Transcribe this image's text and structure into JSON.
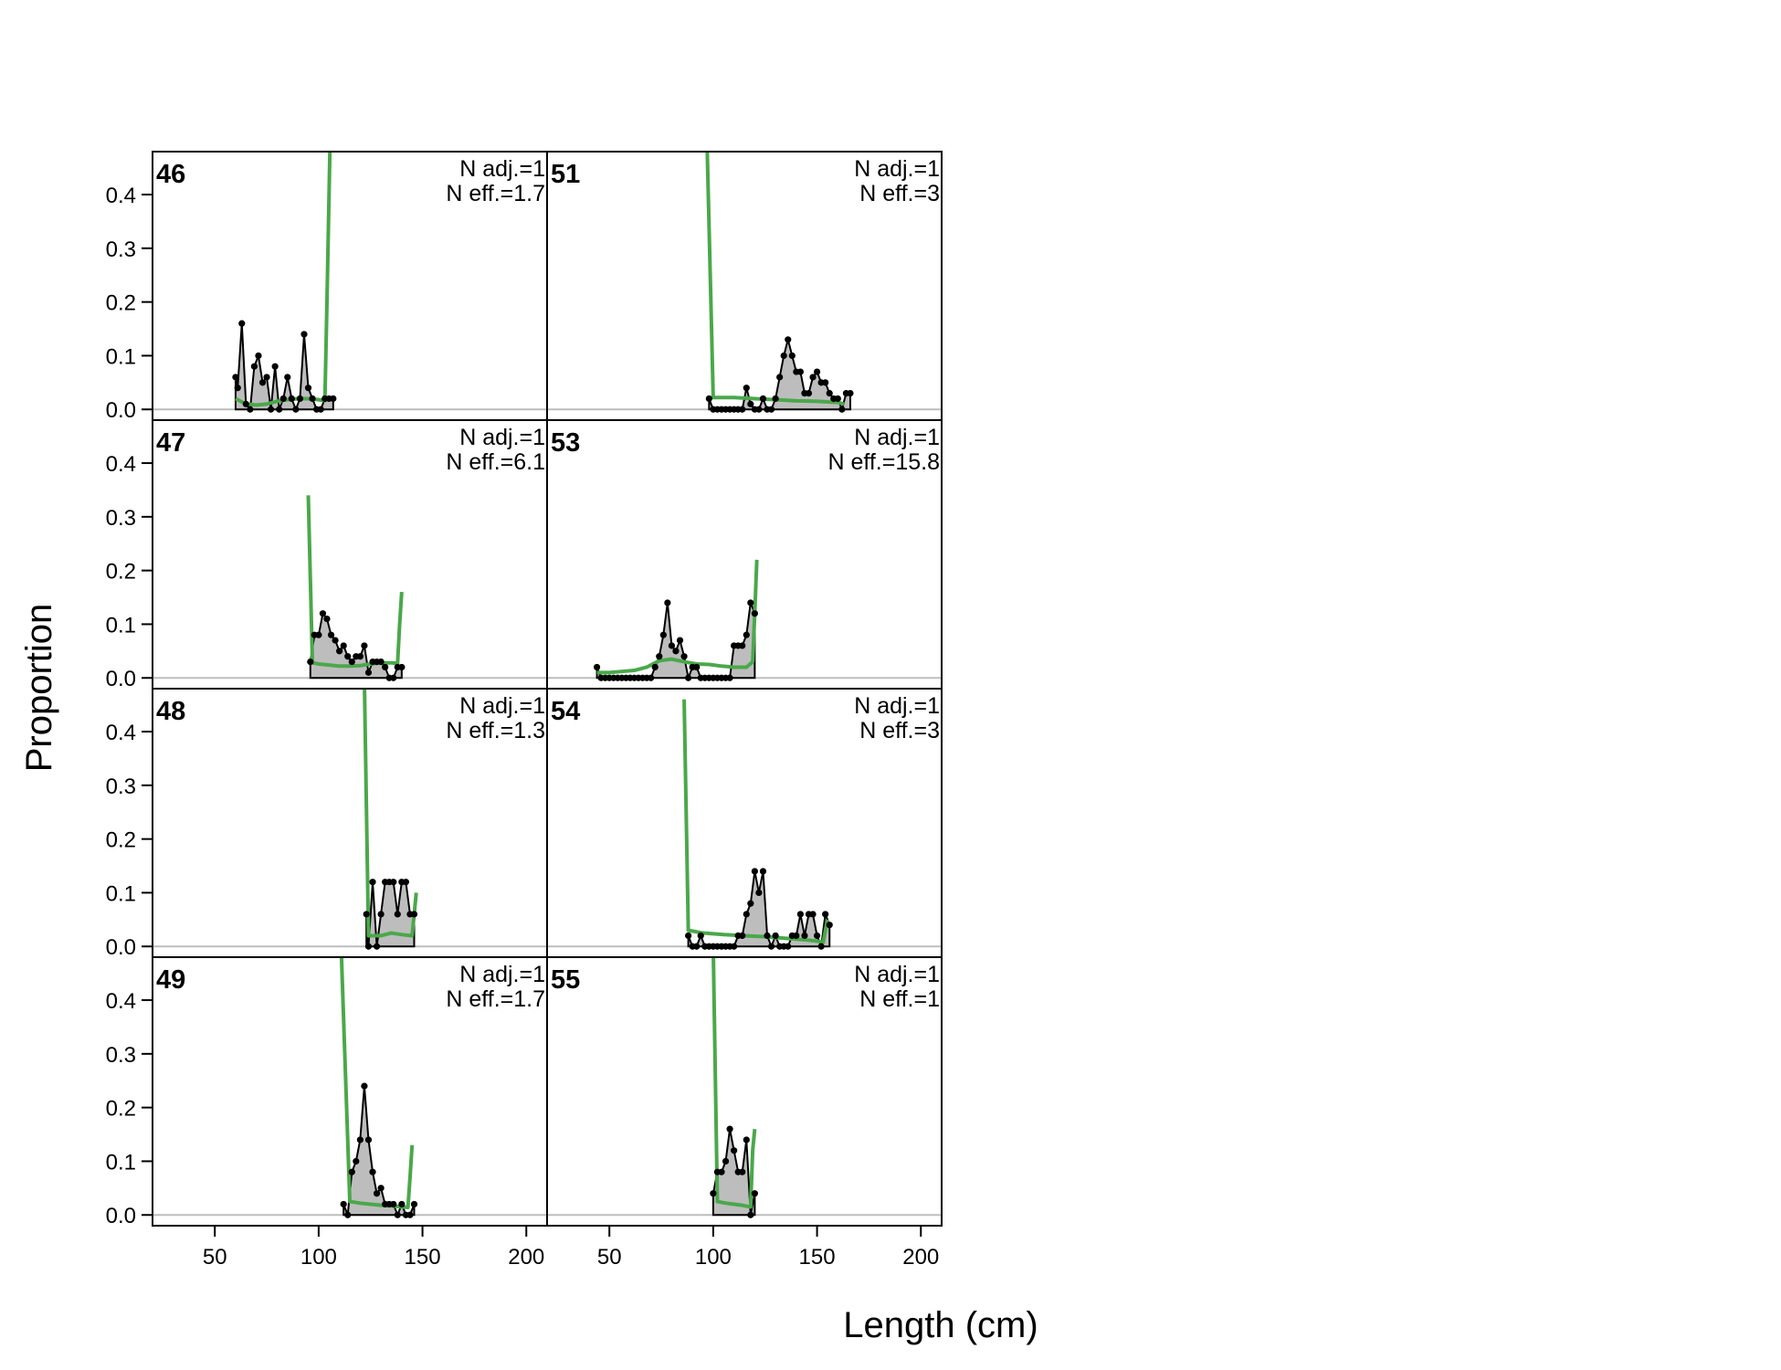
{
  "chart_data": {
    "type": "line",
    "xlabel": "Length (cm)",
    "ylabel": "Proportion",
    "xlim": [
      20,
      210
    ],
    "ylim": [
      -0.02,
      0.48
    ],
    "x_ticks": [
      "50",
      "100",
      "150",
      "200"
    ],
    "y_ticks": [
      "0.0",
      "0.1",
      "0.2",
      "0.3",
      "0.4"
    ],
    "colors": {
      "observed_fill": "#bdbdbd",
      "observed_line": "#000000",
      "expected_line": "#4aa84a",
      "zero_line": "#bdbdbd"
    },
    "panels": [
      {
        "id": "46",
        "n_adj": "N adj.=1",
        "n_eff": "N eff.=1.7",
        "observed": [
          [
            60,
            0.06
          ],
          [
            61,
            0.04
          ],
          [
            63,
            0.16
          ],
          [
            65,
            0.01
          ],
          [
            67,
            0.0
          ],
          [
            69,
            0.08
          ],
          [
            71,
            0.1
          ],
          [
            73,
            0.05
          ],
          [
            75,
            0.06
          ],
          [
            77,
            0.0
          ],
          [
            79,
            0.08
          ],
          [
            81,
            0.0
          ],
          [
            83,
            0.02
          ],
          [
            85,
            0.06
          ],
          [
            87,
            0.02
          ],
          [
            89,
            0.0
          ],
          [
            91,
            0.02
          ],
          [
            93,
            0.14
          ],
          [
            95,
            0.04
          ],
          [
            97,
            0.02
          ],
          [
            99,
            0.0
          ],
          [
            101,
            0.0
          ],
          [
            103,
            0.02
          ],
          [
            105,
            0.02
          ],
          [
            107,
            0.02
          ]
        ],
        "expected": [
          [
            60,
            0.02
          ],
          [
            65,
            0.01
          ],
          [
            70,
            0.008
          ],
          [
            75,
            0.01
          ],
          [
            80,
            0.015
          ],
          [
            85,
            0.018
          ],
          [
            90,
            0.02
          ],
          [
            95,
            0.02
          ],
          [
            100,
            0.018
          ],
          [
            103,
            0.016
          ],
          [
            104,
            0.2
          ],
          [
            105,
            0.4
          ],
          [
            106,
            0.6
          ]
        ]
      },
      {
        "id": "51",
        "n_adj": "N adj.=1",
        "n_eff": "N eff.=3",
        "observed": [
          [
            98,
            0.02
          ],
          [
            100,
            0.0
          ],
          [
            102,
            0.0
          ],
          [
            104,
            0.0
          ],
          [
            106,
            0.0
          ],
          [
            108,
            0.0
          ],
          [
            110,
            0.0
          ],
          [
            112,
            0.0
          ],
          [
            114,
            0.0
          ],
          [
            116,
            0.04
          ],
          [
            118,
            0.01
          ],
          [
            120,
            0.0
          ],
          [
            122,
            0.0
          ],
          [
            124,
            0.02
          ],
          [
            126,
            0.0
          ],
          [
            128,
            0.0
          ],
          [
            130,
            0.02
          ],
          [
            132,
            0.06
          ],
          [
            134,
            0.1
          ],
          [
            136,
            0.13
          ],
          [
            138,
            0.1
          ],
          [
            140,
            0.07
          ],
          [
            142,
            0.07
          ],
          [
            144,
            0.03
          ],
          [
            146,
            0.03
          ],
          [
            148,
            0.06
          ],
          [
            150,
            0.07
          ],
          [
            152,
            0.05
          ],
          [
            154,
            0.05
          ],
          [
            156,
            0.03
          ],
          [
            158,
            0.02
          ],
          [
            160,
            0.02
          ],
          [
            162,
            0.0
          ],
          [
            164,
            0.03
          ],
          [
            166,
            0.03
          ]
        ],
        "expected": [
          [
            97,
            0.5
          ],
          [
            100,
            0.022
          ],
          [
            110,
            0.022
          ],
          [
            120,
            0.02
          ],
          [
            130,
            0.018
          ],
          [
            140,
            0.016
          ],
          [
            150,
            0.015
          ],
          [
            160,
            0.013
          ],
          [
            163,
            0.01
          ]
        ]
      },
      {
        "id": "47",
        "n_adj": "N adj.=1",
        "n_eff": "N eff.=6.1",
        "observed": [
          [
            96,
            0.03
          ],
          [
            98,
            0.08
          ],
          [
            100,
            0.08
          ],
          [
            102,
            0.12
          ],
          [
            104,
            0.11
          ],
          [
            106,
            0.08
          ],
          [
            108,
            0.07
          ],
          [
            110,
            0.05
          ],
          [
            112,
            0.06
          ],
          [
            114,
            0.04
          ],
          [
            116,
            0.03
          ],
          [
            118,
            0.04
          ],
          [
            120,
            0.04
          ],
          [
            122,
            0.06
          ],
          [
            124,
            0.01
          ],
          [
            126,
            0.03
          ],
          [
            128,
            0.03
          ],
          [
            130,
            0.03
          ],
          [
            132,
            0.02
          ],
          [
            134,
            0.0
          ],
          [
            136,
            0.0
          ],
          [
            138,
            0.02
          ],
          [
            140,
            0.02
          ]
        ],
        "expected": [
          [
            95,
            0.34
          ],
          [
            97,
            0.028
          ],
          [
            100,
            0.026
          ],
          [
            105,
            0.024
          ],
          [
            110,
            0.022
          ],
          [
            115,
            0.022
          ],
          [
            120,
            0.023
          ],
          [
            125,
            0.026
          ],
          [
            130,
            0.028
          ],
          [
            135,
            0.028
          ],
          [
            138,
            0.027
          ],
          [
            139,
            0.1
          ],
          [
            140,
            0.16
          ]
        ]
      },
      {
        "id": "53",
        "n_adj": "N adj.=1",
        "n_eff": "N eff.=15.8",
        "observed": [
          [
            44,
            0.02
          ],
          [
            46,
            0.0
          ],
          [
            48,
            0.0
          ],
          [
            50,
            0.0
          ],
          [
            52,
            0.0
          ],
          [
            54,
            0.0
          ],
          [
            56,
            0.0
          ],
          [
            58,
            0.0
          ],
          [
            60,
            0.0
          ],
          [
            62,
            0.0
          ],
          [
            64,
            0.0
          ],
          [
            66,
            0.0
          ],
          [
            68,
            0.0
          ],
          [
            70,
            0.0
          ],
          [
            72,
            0.02
          ],
          [
            74,
            0.04
          ],
          [
            76,
            0.08
          ],
          [
            78,
            0.14
          ],
          [
            80,
            0.06
          ],
          [
            82,
            0.05
          ],
          [
            84,
            0.07
          ],
          [
            86,
            0.04
          ],
          [
            88,
            0.0
          ],
          [
            90,
            0.02
          ],
          [
            92,
            0.02
          ],
          [
            94,
            0.0
          ],
          [
            96,
            0.0
          ],
          [
            98,
            0.0
          ],
          [
            100,
            0.0
          ],
          [
            102,
            0.0
          ],
          [
            104,
            0.0
          ],
          [
            106,
            0.0
          ],
          [
            108,
            0.0
          ],
          [
            110,
            0.06
          ],
          [
            112,
            0.06
          ],
          [
            114,
            0.06
          ],
          [
            116,
            0.08
          ],
          [
            118,
            0.14
          ],
          [
            120,
            0.12
          ]
        ],
        "expected": [
          [
            44,
            0.01
          ],
          [
            50,
            0.01
          ],
          [
            56,
            0.012
          ],
          [
            62,
            0.014
          ],
          [
            68,
            0.02
          ],
          [
            74,
            0.032
          ],
          [
            80,
            0.035
          ],
          [
            86,
            0.03
          ],
          [
            92,
            0.026
          ],
          [
            98,
            0.025
          ],
          [
            104,
            0.022
          ],
          [
            110,
            0.02
          ],
          [
            116,
            0.02
          ],
          [
            119,
            0.03
          ],
          [
            120,
            0.12
          ],
          [
            121,
            0.22
          ]
        ]
      },
      {
        "id": "48",
        "n_adj": "N adj.=1",
        "n_eff": "N eff.=1.3",
        "observed": [
          [
            123,
            0.06
          ],
          [
            124,
            0.0
          ],
          [
            126,
            0.12
          ],
          [
            128,
            0.0
          ],
          [
            130,
            0.06
          ],
          [
            132,
            0.12
          ],
          [
            134,
            0.12
          ],
          [
            136,
            0.12
          ],
          [
            138,
            0.06
          ],
          [
            140,
            0.12
          ],
          [
            142,
            0.12
          ],
          [
            144,
            0.06
          ],
          [
            146,
            0.06
          ]
        ],
        "expected": [
          [
            122,
            0.5
          ],
          [
            124,
            0.02
          ],
          [
            130,
            0.02
          ],
          [
            135,
            0.025
          ],
          [
            140,
            0.022
          ],
          [
            145,
            0.02
          ],
          [
            146,
            0.06
          ],
          [
            147,
            0.1
          ]
        ]
      },
      {
        "id": "54",
        "n_adj": "N adj.=1",
        "n_eff": "N eff.=3",
        "observed": [
          [
            88,
            0.02
          ],
          [
            90,
            0.0
          ],
          [
            92,
            0.0
          ],
          [
            94,
            0.02
          ],
          [
            96,
            0.0
          ],
          [
            98,
            0.0
          ],
          [
            100,
            0.0
          ],
          [
            102,
            0.0
          ],
          [
            104,
            0.0
          ],
          [
            106,
            0.0
          ],
          [
            108,
            0.0
          ],
          [
            110,
            0.0
          ],
          [
            112,
            0.02
          ],
          [
            114,
            0.02
          ],
          [
            116,
            0.06
          ],
          [
            118,
            0.08
          ],
          [
            120,
            0.14
          ],
          [
            122,
            0.1
          ],
          [
            124,
            0.14
          ],
          [
            126,
            0.02
          ],
          [
            128,
            0.0
          ],
          [
            130,
            0.02
          ],
          [
            132,
            0.0
          ],
          [
            134,
            0.0
          ],
          [
            136,
            0.0
          ],
          [
            138,
            0.02
          ],
          [
            140,
            0.02
          ],
          [
            142,
            0.06
          ],
          [
            144,
            0.02
          ],
          [
            146,
            0.06
          ],
          [
            148,
            0.06
          ],
          [
            150,
            0.02
          ],
          [
            152,
            0.0
          ],
          [
            154,
            0.06
          ],
          [
            156,
            0.04
          ]
        ],
        "expected": [
          [
            86,
            0.46
          ],
          [
            88,
            0.03
          ],
          [
            95,
            0.025
          ],
          [
            105,
            0.022
          ],
          [
            115,
            0.02
          ],
          [
            125,
            0.018
          ],
          [
            135,
            0.015
          ],
          [
            145,
            0.012
          ],
          [
            150,
            0.01
          ],
          [
            153,
            0.008
          ],
          [
            155,
            0.05
          ]
        ]
      },
      {
        "id": "49",
        "n_adj": "N adj.=1",
        "n_eff": "N eff.=1.7",
        "observed": [
          [
            112,
            0.02
          ],
          [
            114,
            0.0
          ],
          [
            116,
            0.08
          ],
          [
            118,
            0.1
          ],
          [
            120,
            0.14
          ],
          [
            122,
            0.24
          ],
          [
            124,
            0.14
          ],
          [
            126,
            0.08
          ],
          [
            128,
            0.04
          ],
          [
            130,
            0.05
          ],
          [
            132,
            0.02
          ],
          [
            134,
            0.02
          ],
          [
            136,
            0.02
          ],
          [
            138,
            0.0
          ],
          [
            140,
            0.02
          ],
          [
            142,
            0.0
          ],
          [
            144,
            0.0
          ],
          [
            146,
            0.02
          ]
        ],
        "expected": [
          [
            111,
            0.48
          ],
          [
            115,
            0.025
          ],
          [
            120,
            0.022
          ],
          [
            125,
            0.02
          ],
          [
            130,
            0.018
          ],
          [
            135,
            0.017
          ],
          [
            140,
            0.015
          ],
          [
            143,
            0.014
          ],
          [
            144,
            0.07
          ],
          [
            145,
            0.13
          ]
        ]
      },
      {
        "id": "55",
        "n_adj": "N adj.=1",
        "n_eff": "N eff.=1",
        "observed": [
          [
            100,
            0.04
          ],
          [
            102,
            0.08
          ],
          [
            104,
            0.08
          ],
          [
            106,
            0.1
          ],
          [
            108,
            0.16
          ],
          [
            110,
            0.12
          ],
          [
            112,
            0.08
          ],
          [
            114,
            0.08
          ],
          [
            116,
            0.14
          ],
          [
            118,
            0.0
          ],
          [
            120,
            0.04
          ]
        ],
        "expected": [
          [
            100,
            0.5
          ],
          [
            102,
            0.025
          ],
          [
            106,
            0.022
          ],
          [
            110,
            0.02
          ],
          [
            114,
            0.018
          ],
          [
            118,
            0.015
          ],
          [
            119,
            0.12
          ],
          [
            120,
            0.16
          ]
        ]
      }
    ]
  }
}
